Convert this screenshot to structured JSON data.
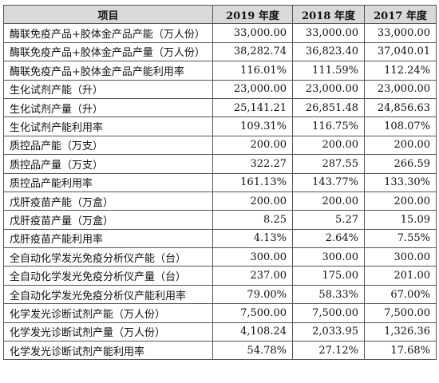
{
  "table": {
    "headers": [
      "项目",
      "2019 年度",
      "2018 年度",
      "2017 年度"
    ],
    "rows": [
      [
        "酶联免疫产品+胶体金产品产能（万人份）",
        "33,000.00",
        "33,000.00",
        "33,000.00"
      ],
      [
        "酶联免疫产品+胶体金产品产量（万人份）",
        "38,282.74",
        "36,823.40",
        "37,040.01"
      ],
      [
        "酶联免疫产品+胶体金产品产能利用率",
        "116.01%",
        "111.59%",
        "112.24%"
      ],
      [
        "生化试剂产能（升）",
        "23,000.00",
        "23,000.00",
        "23,000.00"
      ],
      [
        "生化试剂产量（升）",
        "25,141.21",
        "26,851.48",
        "24,856.63"
      ],
      [
        "生化试剂产能利用率",
        "109.31%",
        "116.75%",
        "108.07%"
      ],
      [
        "质控品产能（万支）",
        "200.00",
        "200.00",
        "200.00"
      ],
      [
        "质控品产量（万支）",
        "322.27",
        "287.55",
        "266.59"
      ],
      [
        "质控品产能利用率",
        "161.13%",
        "143.77%",
        "133.30%"
      ],
      [
        "戊肝疫苗产能（万盒）",
        "200.00",
        "200.00",
        "200.00"
      ],
      [
        "戊肝疫苗产量（万盒）",
        "8.25",
        "5.27",
        "15.09"
      ],
      [
        "戊肝疫苗产能利用率",
        "4.13%",
        "2.64%",
        "7.55%"
      ],
      [
        "全自动化学发光免疫分析仪产能（台）",
        "300.00",
        "300.00",
        "300.00"
      ],
      [
        "全自动化学发光免疫分析仪产量（台）",
        "237.00",
        "175.00",
        "201.00"
      ],
      [
        "全自动化学发光免疫分析仪产能利用率",
        "79.00%",
        "58.33%",
        "67.00%"
      ],
      [
        "化学发光诊断试剂产能（万人份）",
        "7,500.00",
        "7,500.00",
        "7,500.00"
      ],
      [
        "化学发光诊断试剂产量（万人份）",
        "4,108.24",
        "2,033.95",
        "1,326.36"
      ],
      [
        "化学发光诊断试剂产能利用率",
        "54.78%",
        "27.12%",
        "17.68%"
      ]
    ]
  }
}
